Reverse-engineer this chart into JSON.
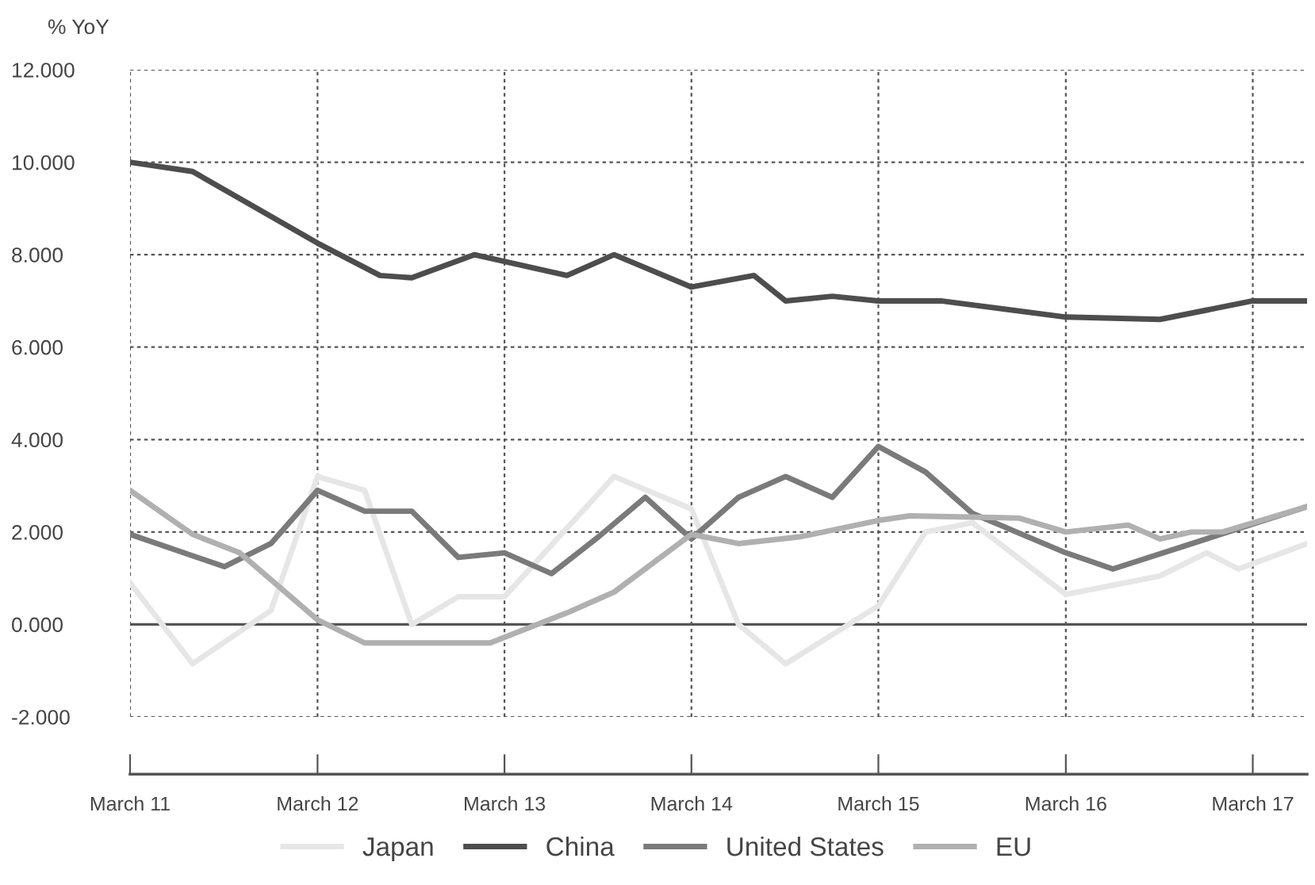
{
  "chart_data": {
    "type": "line",
    "ylabel": "% YoY",
    "xlim": [
      "2011-03",
      "2017-06-15"
    ],
    "ylim": [
      -2,
      12
    ],
    "xticks": [
      {
        "value": "2011-03",
        "label": "March 11"
      },
      {
        "value": "2012-03",
        "label": "March 12"
      },
      {
        "value": "2013-03",
        "label": "March 13"
      },
      {
        "value": "2014-03",
        "label": "March 14"
      },
      {
        "value": "2015-03",
        "label": "March 15"
      },
      {
        "value": "2016-03",
        "label": "March 16"
      },
      {
        "value": "2017-03",
        "label": "March 17"
      }
    ],
    "yticks": [
      {
        "value": -2,
        "label": "-2.000"
      },
      {
        "value": 0,
        "label": "0.000"
      },
      {
        "value": 2,
        "label": "2.000"
      },
      {
        "value": 4,
        "label": "4.000"
      },
      {
        "value": 6,
        "label": "6.000"
      },
      {
        "value": 8,
        "label": "8.000"
      },
      {
        "value": 10,
        "label": "10.000"
      },
      {
        "value": 12,
        "label": "12.000"
      }
    ],
    "ref_lines": [
      {
        "axis": "y",
        "value": 0,
        "color": "#555555",
        "line_style": "solid"
      }
    ],
    "grid": true,
    "legend": "bottom",
    "marker": "none",
    "line_style": "solid",
    "series": [
      {
        "name": "Japan",
        "color": "#e6e6e6",
        "x": [
          "2011-03",
          "2011-07",
          "2011-12",
          "2012-03",
          "2012-06",
          "2012-09",
          "2012-12",
          "2013-03",
          "2013-10",
          "2014-03",
          "2014-06",
          "2014-09",
          "2015-03",
          "2015-06",
          "2015-09",
          "2016-03",
          "2016-09",
          "2016-12",
          "2017-02",
          "2017-06-15"
        ],
        "values": [
          0.9,
          -0.85,
          0.3,
          3.2,
          2.9,
          0.0,
          0.6,
          0.6,
          3.2,
          2.5,
          0.0,
          -0.85,
          0.4,
          2.0,
          2.2,
          0.65,
          1.05,
          1.55,
          1.2,
          1.75
        ]
      },
      {
        "name": "China",
        "color": "#4d4d4d",
        "x": [
          "2011-03",
          "2011-07",
          "2012-03",
          "2012-07",
          "2012-09",
          "2013-01",
          "2013-07",
          "2013-10",
          "2014-03",
          "2014-07",
          "2014-09",
          "2014-12",
          "2015-03",
          "2015-07",
          "2016-03",
          "2016-09",
          "2017-03",
          "2017-06-15"
        ],
        "values": [
          10.0,
          9.8,
          8.25,
          7.55,
          7.5,
          8.0,
          7.55,
          8.0,
          7.3,
          7.55,
          7.0,
          7.1,
          7.0,
          7.0,
          6.65,
          6.6,
          7.0,
          7.0
        ]
      },
      {
        "name": "United States",
        "color": "#7a7a7a",
        "x": [
          "2011-03",
          "2011-09",
          "2011-12",
          "2012-03",
          "2012-06",
          "2012-09",
          "2012-12",
          "2013-03",
          "2013-06",
          "2013-09",
          "2013-12",
          "2014-03",
          "2014-06",
          "2014-09",
          "2014-12",
          "2015-03",
          "2015-06",
          "2015-09",
          "2016-03",
          "2016-06",
          "2017-06-15"
        ],
        "values": [
          1.95,
          1.25,
          1.75,
          2.9,
          2.45,
          2.45,
          1.45,
          1.55,
          1.1,
          1.9,
          2.75,
          1.85,
          2.75,
          3.2,
          2.75,
          3.85,
          3.3,
          2.4,
          1.55,
          1.2,
          2.55
        ]
      },
      {
        "name": "EU",
        "color": "#b0b0b0",
        "x": [
          "2011-03",
          "2011-07",
          "2011-10",
          "2012-03",
          "2012-06",
          "2013-02",
          "2013-07",
          "2013-10",
          "2014-03",
          "2014-06",
          "2014-10",
          "2015-03",
          "2015-05",
          "2015-12",
          "2016-03",
          "2016-07",
          "2016-09",
          "2016-11",
          "2017-01",
          "2017-06-15"
        ],
        "values": [
          2.9,
          1.95,
          1.55,
          0.1,
          -0.4,
          -0.4,
          0.25,
          0.7,
          1.95,
          1.75,
          1.9,
          2.25,
          2.35,
          2.3,
          2.0,
          2.15,
          1.85,
          2.0,
          2.0,
          2.55
        ]
      }
    ]
  }
}
